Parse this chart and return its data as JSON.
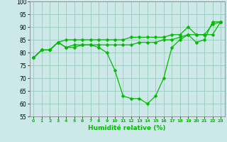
{
  "xlabel": "Humidité relative (%)",
  "xlim": [
    -0.5,
    23.5
  ],
  "ylim": [
    55,
    100
  ],
  "yticks": [
    55,
    60,
    65,
    70,
    75,
    80,
    85,
    90,
    95,
    100
  ],
  "background_color": "#cce8e8",
  "grid_color": "#99ccbb",
  "line_color": "#00bb00",
  "line1": [
    78,
    81,
    81,
    84,
    82,
    82,
    83,
    83,
    82,
    80,
    73,
    63,
    62,
    62,
    60,
    63,
    70,
    82,
    85,
    87,
    84,
    85,
    92,
    92
  ],
  "line2": [
    78,
    81,
    81,
    84,
    82,
    83,
    83,
    83,
    83,
    83,
    83,
    83,
    83,
    84,
    84,
    84,
    85,
    85,
    86,
    87,
    87,
    87,
    87,
    92
  ],
  "line3": [
    78,
    81,
    81,
    84,
    85,
    85,
    85,
    85,
    85,
    85,
    85,
    85,
    86,
    86,
    86,
    86,
    86,
    87,
    87,
    90,
    87,
    87,
    91,
    92
  ],
  "markersize": 2.5,
  "linewidth": 0.9
}
